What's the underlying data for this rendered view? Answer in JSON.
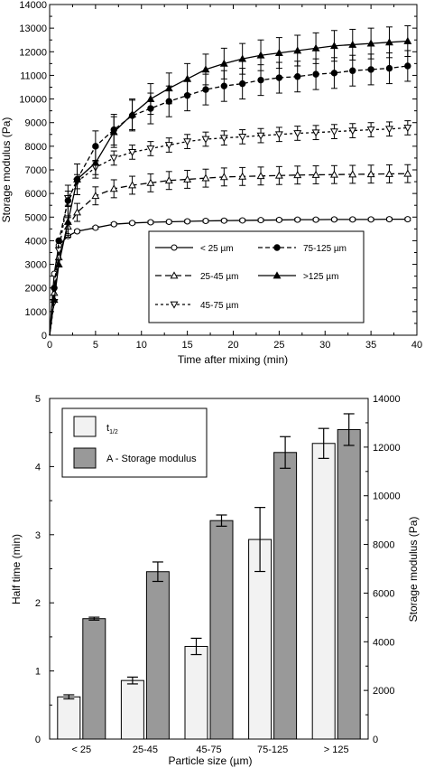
{
  "chart_data": [
    {
      "type": "line",
      "xlabel": "Time after mixing (min)",
      "ylabel": "Storage modulus (Pa)",
      "xlim": [
        0,
        40
      ],
      "ylim": [
        0,
        14000
      ],
      "xticks": [
        "0",
        "5",
        "10",
        "15",
        "20",
        "25",
        "30",
        "35",
        "40"
      ],
      "yticks": [
        "0",
        "1000",
        "2000",
        "3000",
        "4000",
        "5000",
        "6000",
        "7000",
        "8000",
        "9000",
        "10000",
        "11000",
        "12000",
        "13000",
        "14000"
      ],
      "grid": false,
      "legend_position": "bottom-right",
      "x": [
        0.5,
        1,
        2,
        3,
        5,
        7,
        9,
        11,
        13,
        15,
        17,
        19,
        21,
        23,
        25,
        27,
        29,
        31,
        33,
        35,
        37,
        39
      ],
      "series": [
        {
          "name": "< 25 µm",
          "marker": "open-circle",
          "line": "solid",
          "values": [
            2600,
            3800,
            4200,
            4400,
            4550,
            4700,
            4750,
            4780,
            4800,
            4820,
            4840,
            4850,
            4860,
            4870,
            4880,
            4890,
            4890,
            4900,
            4900,
            4900,
            4910,
            4910
          ],
          "error": 60
        },
        {
          "name": "25-45 µm",
          "marker": "open-triangle-up",
          "line": "long-dash",
          "values": [
            1800,
            3300,
            4600,
            5200,
            5900,
            6200,
            6350,
            6450,
            6550,
            6600,
            6650,
            6700,
            6720,
            6740,
            6760,
            6780,
            6790,
            6800,
            6810,
            6820,
            6830,
            6840
          ],
          "error": 380
        },
        {
          "name": "45-75 µm",
          "marker": "open-triangle-down",
          "line": "short-dash",
          "values": [
            1400,
            3600,
            5800,
            6500,
            7100,
            7500,
            7750,
            7900,
            8050,
            8200,
            8300,
            8350,
            8400,
            8450,
            8500,
            8550,
            8580,
            8620,
            8660,
            8700,
            8730,
            8780
          ],
          "error": 300
        },
        {
          "name": "75-125 µm",
          "marker": "filled-circle",
          "line": "dash",
          "values": [
            2000,
            4000,
            5700,
            6600,
            8000,
            8700,
            9300,
            9600,
            9900,
            10150,
            10400,
            10550,
            10650,
            10800,
            10900,
            10950,
            11050,
            11100,
            11200,
            11250,
            11300,
            11400
          ],
          "error": 650
        },
        {
          "name": ">125 µm",
          "marker": "filled-triangle-up",
          "line": "solid",
          "values": [
            1500,
            3000,
            4800,
            6600,
            7300,
            8600,
            9350,
            10000,
            10450,
            10850,
            11250,
            11500,
            11700,
            11850,
            11950,
            12050,
            12150,
            12250,
            12300,
            12350,
            12400,
            12450
          ],
          "error": 650
        }
      ]
    },
    {
      "type": "bar",
      "xlabel": "Particle size (µm)",
      "ylabel_left": "Half time (min)",
      "ylabel_right": "Storage modulus (Pa)",
      "categories": [
        "< 25",
        "25-45",
        "45-75",
        "75-125",
        "> 125"
      ],
      "ylim_left": [
        0,
        5
      ],
      "ylim_right": [
        0,
        14000
      ],
      "yticks_left": [
        "0",
        "1",
        "2",
        "3",
        "4",
        "5"
      ],
      "yticks_right": [
        "0",
        "2000",
        "4000",
        "6000",
        "8000",
        "10000",
        "12000",
        "14000"
      ],
      "legend_position": "top-left",
      "series": [
        {
          "name": "t",
          "name_sub": "1/2",
          "axis": "left",
          "color": "#f2f2f2",
          "values": [
            0.62,
            0.86,
            1.36,
            2.93,
            4.34
          ],
          "error": [
            0.03,
            0.05,
            0.12,
            0.47,
            0.22
          ]
        },
        {
          "name": "A - Storage modulus",
          "axis": "right",
          "color": "#999999",
          "values": [
            4950,
            6880,
            8980,
            11780,
            12720
          ],
          "error": [
            60,
            400,
            230,
            650,
            650
          ]
        }
      ]
    }
  ]
}
